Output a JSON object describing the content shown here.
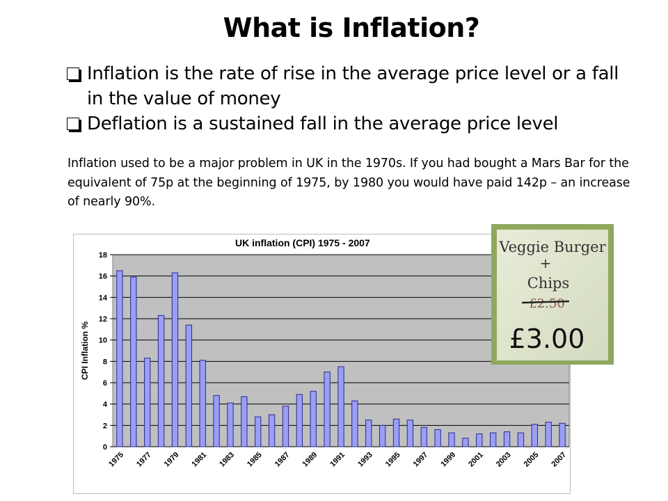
{
  "slide": {
    "title": "What is Inflation?",
    "bullets": [
      "Inflation is the rate of rise in the average price level or a fall in the value of money",
      "Deflation is a sustained fall in the average price level"
    ],
    "paragraph": "Inflation used to be a major problem in UK in the 1970s.  If you had bought a Mars Bar for the equivalent of 75p at the beginning of 1975, by 1980 you would have paid 142p – an increase of nearly 90%."
  },
  "photo": {
    "lines": [
      "Veggie Burger",
      "+",
      "Chips",
      "£2.50",
      "£3.00"
    ]
  },
  "colors": {
    "bar_fill": "#9a9ef5",
    "bar_stroke": "#2a2a8a",
    "plot_bg": "#c0c0c0"
  },
  "chart_data": {
    "type": "bar",
    "title": "UK inflation (CPI) 1975 - 2007",
    "xlabel": "",
    "ylabel": "CPI Inflation %",
    "ylim": [
      0,
      18
    ],
    "yticks": [
      "0",
      "2",
      "4",
      "6",
      "8",
      "10",
      "12",
      "14",
      "16",
      "18"
    ],
    "grid": true,
    "categories": [
      "1975",
      "1976",
      "1977",
      "1978",
      "1979",
      "1980",
      "1981",
      "1982",
      "1983",
      "1984",
      "1985",
      "1986",
      "1987",
      "1988",
      "1989",
      "1990",
      "1991",
      "1992",
      "1993",
      "1994",
      "1995",
      "1996",
      "1997",
      "1998",
      "1999",
      "2000",
      "2001",
      "2002",
      "2003",
      "2004",
      "2005",
      "2006",
      "2007"
    ],
    "xtick_labels": [
      "1975",
      "1977",
      "1979",
      "1981",
      "1983",
      "1985",
      "1987",
      "1989",
      "1991",
      "1993",
      "1995",
      "1997",
      "1999",
      "2001",
      "2003",
      "2005",
      "2007"
    ],
    "values": [
      16.5,
      15.9,
      8.3,
      12.3,
      16.3,
      11.4,
      8.1,
      4.8,
      4.1,
      4.7,
      2.8,
      3.0,
      3.8,
      4.9,
      5.2,
      7.0,
      7.5,
      4.3,
      2.5,
      2.0,
      2.6,
      2.5,
      1.8,
      1.6,
      1.3,
      0.8,
      1.2,
      1.3,
      1.4,
      1.3,
      2.1,
      2.3,
      2.2
    ]
  }
}
